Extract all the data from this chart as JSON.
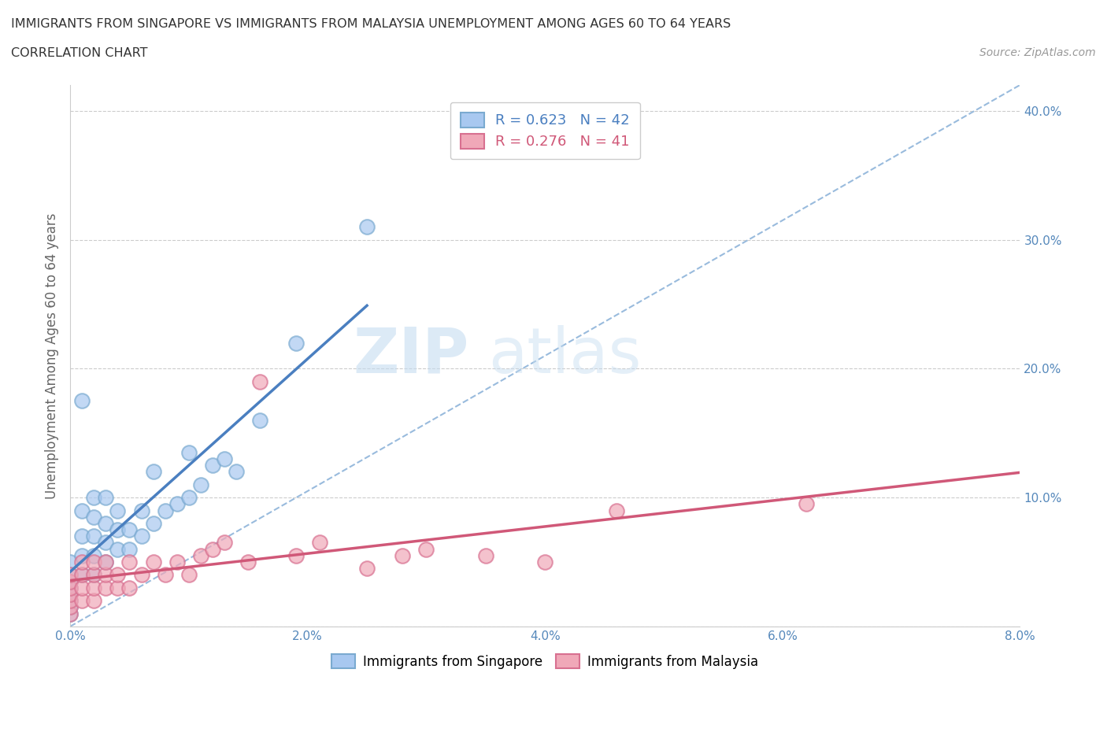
{
  "title_line1": "IMMIGRANTS FROM SINGAPORE VS IMMIGRANTS FROM MALAYSIA UNEMPLOYMENT AMONG AGES 60 TO 64 YEARS",
  "title_line2": "CORRELATION CHART",
  "source_text": "Source: ZipAtlas.com",
  "ylabel": "Unemployment Among Ages 60 to 64 years",
  "xlim": [
    0.0,
    0.08
  ],
  "ylim": [
    0.0,
    0.42
  ],
  "xticks": [
    0.0,
    0.01,
    0.02,
    0.03,
    0.04,
    0.05,
    0.06,
    0.07,
    0.08
  ],
  "yticks": [
    0.0,
    0.1,
    0.2,
    0.3,
    0.4
  ],
  "ytick_labels": [
    "",
    "10.0%",
    "20.0%",
    "30.0%",
    "40.0%"
  ],
  "xtick_labels": [
    "0.0%",
    "",
    "2.0%",
    "",
    "4.0%",
    "",
    "6.0%",
    "",
    "8.0%"
  ],
  "singapore_color": "#A8C8F0",
  "malaysia_color": "#F0A8B8",
  "singapore_edge_color": "#7AAAD0",
  "malaysia_edge_color": "#D87090",
  "singapore_line_color": "#4A7FC0",
  "malaysia_line_color": "#D05878",
  "ref_line_color": "#99BBDD",
  "singapore_R": 0.623,
  "singapore_N": 42,
  "malaysia_R": 0.276,
  "malaysia_N": 41,
  "singapore_scatter_x": [
    0.0,
    0.0,
    0.0,
    0.0,
    0.0,
    0.0,
    0.0,
    0.0,
    0.001,
    0.001,
    0.001,
    0.001,
    0.001,
    0.002,
    0.002,
    0.002,
    0.002,
    0.002,
    0.003,
    0.003,
    0.003,
    0.003,
    0.004,
    0.004,
    0.004,
    0.005,
    0.005,
    0.006,
    0.006,
    0.007,
    0.007,
    0.008,
    0.009,
    0.01,
    0.01,
    0.011,
    0.012,
    0.013,
    0.014,
    0.016,
    0.019,
    0.025
  ],
  "singapore_scatter_y": [
    0.01,
    0.015,
    0.02,
    0.025,
    0.03,
    0.035,
    0.04,
    0.05,
    0.04,
    0.055,
    0.07,
    0.09,
    0.175,
    0.04,
    0.055,
    0.07,
    0.085,
    0.1,
    0.05,
    0.065,
    0.08,
    0.1,
    0.06,
    0.075,
    0.09,
    0.06,
    0.075,
    0.07,
    0.09,
    0.08,
    0.12,
    0.09,
    0.095,
    0.1,
    0.135,
    0.11,
    0.125,
    0.13,
    0.12,
    0.16,
    0.22,
    0.31
  ],
  "malaysia_scatter_x": [
    0.0,
    0.0,
    0.0,
    0.0,
    0.0,
    0.0,
    0.0,
    0.001,
    0.001,
    0.001,
    0.001,
    0.002,
    0.002,
    0.002,
    0.002,
    0.003,
    0.003,
    0.003,
    0.004,
    0.004,
    0.005,
    0.005,
    0.006,
    0.007,
    0.008,
    0.009,
    0.01,
    0.011,
    0.012,
    0.013,
    0.015,
    0.016,
    0.019,
    0.021,
    0.025,
    0.028,
    0.03,
    0.035,
    0.04,
    0.046,
    0.062
  ],
  "malaysia_scatter_y": [
    0.01,
    0.015,
    0.02,
    0.025,
    0.03,
    0.035,
    0.04,
    0.02,
    0.03,
    0.04,
    0.05,
    0.02,
    0.03,
    0.04,
    0.05,
    0.03,
    0.04,
    0.05,
    0.03,
    0.04,
    0.03,
    0.05,
    0.04,
    0.05,
    0.04,
    0.05,
    0.04,
    0.055,
    0.06,
    0.065,
    0.05,
    0.19,
    0.055,
    0.065,
    0.045,
    0.055,
    0.06,
    0.055,
    0.05,
    0.09,
    0.095
  ],
  "watermark_text1": "ZIP",
  "watermark_text2": "atlas",
  "background_color": "#FFFFFF",
  "grid_color": "#CCCCCC",
  "tick_color": "#5588BB",
  "ylabel_color": "#666666",
  "title_color": "#333333"
}
